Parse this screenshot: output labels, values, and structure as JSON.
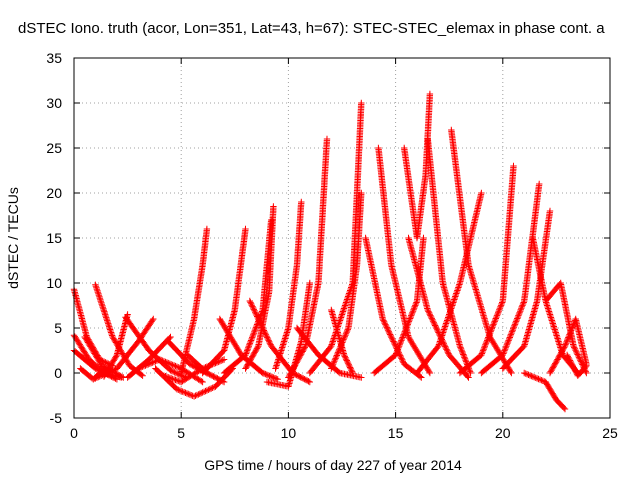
{
  "chart_data": {
    "type": "scatter",
    "title": "dSTEC Iono. truth (acor, Lon=351, Lat=43, h=67): STEC-STEC_elemax in phase cont. a",
    "xlabel": "GPS time / hours of day 227 of year 2014",
    "ylabel": "dSTEC  / TECUs",
    "xlim": [
      0,
      25
    ],
    "ylim": [
      -5,
      35
    ],
    "xticks": [
      0,
      5,
      10,
      15,
      20,
      25
    ],
    "yticks": [
      -5,
      0,
      5,
      10,
      15,
      20,
      25,
      30,
      35
    ],
    "grid": true,
    "marker": "plus",
    "color": "#ff0000",
    "series": [
      {
        "x": [
          0.0,
          0.6,
          1.2,
          1.8
        ],
        "y": [
          9.3,
          4.0,
          1.5,
          0.8
        ]
      },
      {
        "x": [
          0.0,
          0.7,
          1.4,
          2.2
        ],
        "y": [
          4.2,
          1.5,
          0.0,
          -0.5
        ]
      },
      {
        "x": [
          0.0,
          1.0,
          2.0
        ],
        "y": [
          2.5,
          0.5,
          -0.7
        ]
      },
      {
        "x": [
          0.3,
          0.9,
          1.4
        ],
        "y": [
          0.5,
          -0.7,
          0.4
        ]
      },
      {
        "x": [
          1.0,
          1.8,
          2.6,
          3.2
        ],
        "y": [
          9.8,
          4.0,
          0.8,
          -0.3
        ]
      },
      {
        "x": [
          0.5,
          1.3,
          2.3
        ],
        "y": [
          4.0,
          0.8,
          -0.5
        ]
      },
      {
        "x": [
          1.4,
          2.0,
          2.5
        ],
        "y": [
          -0.4,
          2.0,
          6.5
        ]
      },
      {
        "x": [
          1.0,
          2.0,
          3.0,
          3.7
        ],
        "y": [
          -0.6,
          0.5,
          3.5,
          6.0
        ]
      },
      {
        "x": [
          2.4,
          3.5,
          4.5,
          5.2
        ],
        "y": [
          6.2,
          2.5,
          0.3,
          -0.5
        ]
      },
      {
        "x": [
          2.5,
          3.5,
          4.5
        ],
        "y": [
          -0.5,
          1.5,
          4.0
        ]
      },
      {
        "x": [
          3.0,
          4.0,
          5.0,
          6.0
        ],
        "y": [
          0.5,
          1.5,
          0.5,
          -1.0
        ]
      },
      {
        "x": [
          3.8,
          4.8,
          5.6,
          6.6,
          7.4
        ],
        "y": [
          0.5,
          -1.8,
          -2.6,
          -1.5,
          0.5
        ]
      },
      {
        "x": [
          4.2,
          5.0,
          6.0,
          7.0
        ],
        "y": [
          -0.3,
          -1.0,
          0.5,
          1.5
        ]
      },
      {
        "x": [
          4.4,
          5.4,
          6.2
        ],
        "y": [
          3.5,
          1.0,
          0.0
        ]
      },
      {
        "x": [
          5.0,
          5.6,
          6.0,
          6.2
        ],
        "y": [
          0.0,
          6.0,
          12.0,
          16.0
        ]
      },
      {
        "x": [
          5.3,
          6.2,
          7.0
        ],
        "y": [
          2.0,
          0.0,
          -1.0
        ]
      },
      {
        "x": [
          6.8,
          7.8,
          8.8,
          9.5
        ],
        "y": [
          6.0,
          2.0,
          0.0,
          -0.7
        ]
      },
      {
        "x": [
          6.0,
          7.0,
          7.5,
          8.0
        ],
        "y": [
          0.0,
          2.5,
          7.0,
          16.0
        ]
      },
      {
        "x": [
          7.0,
          8.0,
          8.8,
          9.2
        ],
        "y": [
          0.0,
          2.0,
          7.0,
          17.0
        ]
      },
      {
        "x": [
          8.0,
          8.6,
          9.1,
          9.3
        ],
        "y": [
          0.5,
          3.0,
          9.0,
          18.5
        ]
      },
      {
        "x": [
          8.2,
          9.2,
          10.2,
          11.0
        ],
        "y": [
          8.0,
          3.0,
          0.0,
          -1.0
        ]
      },
      {
        "x": [
          9.0,
          10.0,
          10.6,
          11.0
        ],
        "y": [
          -1.0,
          -1.5,
          3.5,
          10.0
        ]
      },
      {
        "x": [
          9.4,
          10.0,
          10.4,
          10.6
        ],
        "y": [
          0.5,
          5.0,
          12.0,
          19.0
        ]
      },
      {
        "x": [
          10.0,
          10.8,
          11.4,
          11.8
        ],
        "y": [
          -0.5,
          3.0,
          10.0,
          26.0
        ]
      },
      {
        "x": [
          10.4,
          11.4,
          12.4,
          13.4
        ],
        "y": [
          5.0,
          2.0,
          0.0,
          -0.5
        ]
      },
      {
        "x": [
          11.0,
          12.0,
          13.0,
          13.4
        ],
        "y": [
          0.0,
          3.0,
          10.0,
          30.0
        ]
      },
      {
        "x": [
          12.0,
          12.8,
          13.2,
          13.4
        ],
        "y": [
          0.5,
          5.0,
          12.0,
          20.0
        ]
      },
      {
        "x": [
          12.0,
          12.6,
          13.0
        ],
        "y": [
          7.0,
          2.0,
          0.0
        ]
      },
      {
        "x": [
          13.6,
          14.4,
          15.4,
          16.2
        ],
        "y": [
          15.0,
          6.0,
          1.0,
          -0.5
        ]
      },
      {
        "x": [
          14.2,
          14.8,
          15.6,
          16.6
        ],
        "y": [
          25.0,
          12.0,
          4.0,
          0.0
        ]
      },
      {
        "x": [
          14.0,
          15.0,
          16.0,
          16.3
        ],
        "y": [
          0.0,
          2.0,
          8.0,
          15.0
        ]
      },
      {
        "x": [
          15.4,
          16.0,
          16.4,
          16.6
        ],
        "y": [
          25.0,
          15.0,
          22.0,
          31.0
        ]
      },
      {
        "x": [
          15.6,
          16.5,
          17.5,
          18.4
        ],
        "y": [
          15.0,
          7.0,
          2.0,
          -0.5
        ]
      },
      {
        "x": [
          16.0,
          17.0,
          18.0,
          19.0
        ],
        "y": [
          0.0,
          3.0,
          10.0,
          20.0
        ]
      },
      {
        "x": [
          16.5,
          17.2,
          18.0,
          18.5
        ],
        "y": [
          26.0,
          10.0,
          3.0,
          0.0
        ]
      },
      {
        "x": [
          17.6,
          18.4,
          19.4,
          20.4
        ],
        "y": [
          27.0,
          12.0,
          4.0,
          0.0
        ]
      },
      {
        "x": [
          18.0,
          19.0,
          20.0,
          20.5
        ],
        "y": [
          0.0,
          2.0,
          8.0,
          23.0
        ]
      },
      {
        "x": [
          19.0,
          20.0,
          21.0,
          21.7
        ],
        "y": [
          0.0,
          2.0,
          8.0,
          21.0
        ]
      },
      {
        "x": [
          20.0,
          21.0,
          21.6,
          22.2
        ],
        "y": [
          0.5,
          3.0,
          8.0,
          18.0
        ]
      },
      {
        "x": [
          21.4,
          22.0,
          22.8,
          23.5
        ],
        "y": [
          15.0,
          8.0,
          2.0,
          0.0
        ]
      },
      {
        "x": [
          21.0,
          22.0,
          22.5,
          22.9
        ],
        "y": [
          0.0,
          -1.0,
          -3.0,
          -4.0
        ]
      },
      {
        "x": [
          22.0,
          22.7,
          23.3,
          23.9
        ],
        "y": [
          8.0,
          10.0,
          3.0,
          0.0
        ]
      },
      {
        "x": [
          22.2,
          22.9,
          23.4,
          23.9
        ],
        "y": [
          0.0,
          3.0,
          6.0,
          1.0
        ]
      },
      {
        "x": [
          23.0,
          23.5,
          23.9
        ],
        "y": [
          2.0,
          -0.3,
          0.8
        ]
      }
    ]
  }
}
